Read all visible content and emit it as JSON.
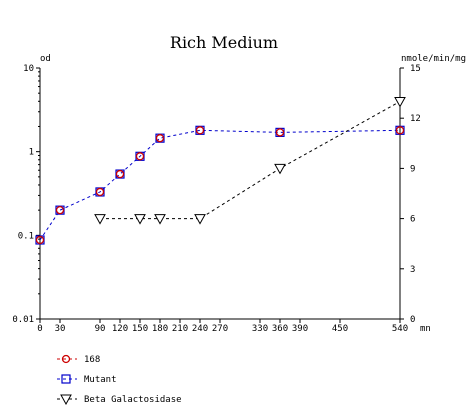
{
  "chart_data": {
    "type": "line",
    "title": "Rich Medium",
    "left_axis": {
      "label": "od",
      "scale": "log",
      "range": [
        0.01,
        10
      ],
      "ticks": [
        {
          "value": 10,
          "label": "10"
        },
        {
          "value": 1,
          "label": "1"
        },
        {
          "value": 0.1,
          "label": "0.1"
        },
        {
          "value": 0.01,
          "label": "0.01"
        }
      ]
    },
    "right_axis": {
      "label": "nmole/min/mg",
      "scale": "linear",
      "range": [
        0,
        15
      ],
      "ticks": [
        {
          "value": 15,
          "label": "15"
        },
        {
          "value": 12,
          "label": "12"
        },
        {
          "value": 9,
          "label": "9"
        },
        {
          "value": 6,
          "label": "6"
        },
        {
          "value": 3,
          "label": "3"
        },
        {
          "value": 0,
          "label": "0"
        }
      ]
    },
    "x_axis": {
      "unit_label": "mn",
      "range": [
        0,
        540
      ],
      "ticks": [
        {
          "value": 0,
          "label": "0"
        },
        {
          "value": 30,
          "label": "30"
        },
        {
          "value": 90,
          "label": "90"
        },
        {
          "value": 120,
          "label": "120"
        },
        {
          "value": 150,
          "label": "150"
        },
        {
          "value": 180,
          "label": "180"
        },
        {
          "value": 210,
          "label": "210"
        },
        {
          "value": 240,
          "label": "240"
        },
        {
          "value": 270,
          "label": "270"
        },
        {
          "value": 330,
          "label": "330"
        },
        {
          "value": 360,
          "label": "360"
        },
        {
          "value": 390,
          "label": "390"
        },
        {
          "value": 450,
          "label": "450"
        },
        {
          "value": 540,
          "label": "540"
        }
      ]
    },
    "series": [
      {
        "name": "168",
        "axis": "left",
        "color": "#cc0000",
        "marker": "circle",
        "line": "none",
        "x": [
          0,
          30,
          90,
          120,
          150,
          180,
          240,
          360,
          540
        ],
        "y": [
          0.088,
          0.2,
          0.33,
          0.54,
          0.88,
          1.45,
          1.8,
          1.7,
          1.8
        ]
      },
      {
        "name": "Mutant",
        "axis": "left",
        "color": "#0000cc",
        "marker": "square",
        "line": "dashed",
        "x": [
          0,
          30,
          90,
          120,
          150,
          180,
          240,
          360,
          540
        ],
        "y": [
          0.088,
          0.2,
          0.33,
          0.54,
          0.88,
          1.45,
          1.8,
          1.7,
          1.8
        ]
      },
      {
        "name": "Beta Galactosidase",
        "axis": "right",
        "color": "#000000",
        "marker": "triangle-down",
        "line": "dashed",
        "x": [
          90,
          150,
          180,
          240,
          360,
          540
        ],
        "y": [
          6,
          6,
          6,
          6,
          9,
          13
        ]
      }
    ],
    "legend_position": "bottom-left",
    "grid": false
  }
}
